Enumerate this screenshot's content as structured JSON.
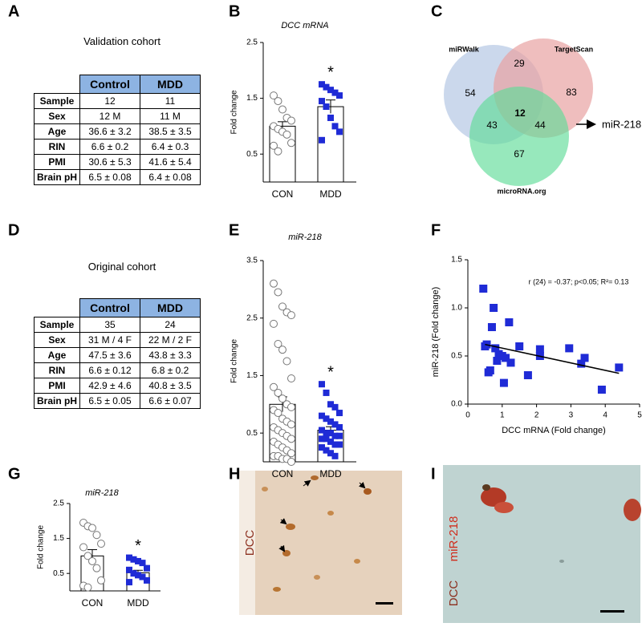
{
  "panel_letters": [
    "A",
    "B",
    "C",
    "D",
    "E",
    "F",
    "G",
    "H",
    "I"
  ],
  "tables": [
    {
      "title": "Validation cohort",
      "header": [
        "Control",
        "MDD"
      ],
      "rows": [
        [
          "Sample",
          "12",
          "11"
        ],
        [
          "Sex",
          "12 M",
          "11 M"
        ],
        [
          "Age",
          "36.6 ± 3.2",
          "38.5 ± 3.5"
        ],
        [
          "RIN",
          "6.6 ± 0.2",
          "6.4 ± 0.3"
        ],
        [
          "PMI",
          "30.6 ± 5.3",
          "41.6 ± 5.4"
        ],
        [
          "Brain pH",
          "6.5 ± 0.08",
          "6.4 ± 0.08"
        ]
      ]
    },
    {
      "title": "Original cohort",
      "header": [
        "Control",
        "MDD"
      ],
      "rows": [
        [
          "Sample",
          "35",
          "24"
        ],
        [
          "Sex",
          "31 M / 4 F",
          "22 M / 2 F"
        ],
        [
          "Age",
          "47.5 ± 3.6",
          "43.8 ± 3.3"
        ],
        [
          "RIN",
          "6.6 ± 0.12",
          "6.8 ± 0.2"
        ],
        [
          "PMI",
          "42.9 ± 4.6",
          "40.8 ± 3.5"
        ],
        [
          "Brain pH",
          "6.5 ± 0.05",
          "6.6 ± 0.07"
        ]
      ]
    }
  ],
  "chart_data": [
    {
      "type": "bar",
      "title": "DCC mRNA",
      "ylabel": "Fold change",
      "categories": [
        "CON",
        "MDD"
      ],
      "values": [
        1.0,
        1.35
      ],
      "errors": [
        0.08,
        0.12
      ],
      "points": [
        [
          1.55,
          1.45,
          1.3,
          1.15,
          1.1,
          1.0,
          0.95,
          0.9,
          0.85,
          0.7,
          0.65,
          0.55
        ],
        [
          1.75,
          1.7,
          1.65,
          1.6,
          1.55,
          1.45,
          1.35,
          1.15,
          1.0,
          0.9,
          0.75
        ]
      ],
      "colors": [
        "#ffffff",
        "#1f2bd6"
      ],
      "markers": [
        "circle",
        "square"
      ],
      "ylim": [
        0,
        2.5
      ],
      "yticks": [
        0.5,
        1.5,
        2.5
      ],
      "annotation": "*"
    },
    {
      "type": "bar",
      "title": "miR-218",
      "ylabel": "Fold change",
      "categories": [
        "CON",
        "MDD"
      ],
      "values": [
        1.0,
        0.55
      ],
      "errors": [
        0.13,
        0.06
      ],
      "points": [
        [
          3.1,
          2.95,
          2.7,
          2.6,
          2.55,
          2.4,
          2.05,
          1.95,
          1.75,
          1.45,
          1.3,
          1.2,
          1.1,
          1.0,
          0.95,
          0.9,
          0.85,
          0.75,
          0.7,
          0.65,
          0.6,
          0.55,
          0.5,
          0.45,
          0.4,
          0.35,
          0.3,
          0.25,
          0.2,
          0.15,
          0.1,
          0.1,
          0.05,
          0.05,
          0.0
        ],
        [
          1.35,
          1.2,
          1.0,
          0.95,
          0.85,
          0.8,
          0.75,
          0.7,
          0.65,
          0.6,
          0.55,
          0.5,
          0.5,
          0.45,
          0.45,
          0.4,
          0.4,
          0.35,
          0.3,
          0.3,
          0.25,
          0.2,
          0.15,
          0.1
        ]
      ],
      "colors": [
        "#ffffff",
        "#1f2bd6"
      ],
      "markers": [
        "circle",
        "square"
      ],
      "ylim": [
        0,
        3.5
      ],
      "yticks": [
        0.5,
        1.5,
        2.5,
        3.5
      ],
      "annotation": "*"
    },
    {
      "type": "scatter",
      "xlabel": "DCC mRNA (Fold change)",
      "ylabel": "miR-218 (Fold change)",
      "annotation": "r (24) = -0.37; p<0.05; R²= 0.13",
      "x": [
        0.45,
        0.5,
        0.55,
        0.6,
        0.65,
        0.7,
        0.75,
        0.8,
        0.85,
        0.9,
        1.0,
        1.05,
        1.1,
        1.2,
        1.25,
        1.5,
        1.75,
        2.1,
        2.1,
        2.95,
        3.3,
        3.4,
        3.9,
        4.4
      ],
      "y": [
        1.2,
        0.6,
        0.62,
        0.33,
        0.35,
        0.8,
        1.0,
        0.58,
        0.45,
        0.52,
        0.5,
        0.22,
        0.48,
        0.85,
        0.43,
        0.6,
        0.3,
        0.57,
        0.5,
        0.58,
        0.42,
        0.48,
        0.15,
        0.38
      ],
      "color": "#1f2bd6",
      "trendline": {
        "x": [
          0.5,
          4.4
        ],
        "y": [
          0.62,
          0.32
        ]
      },
      "xlim": [
        0,
        5
      ],
      "ylim": [
        0,
        1.5
      ],
      "xticks": [
        0,
        1,
        2,
        3,
        4,
        5
      ],
      "yticks": [
        {
          "value": 0,
          "label": "0.0"
        },
        0.5,
        {
          "value": 1,
          "label": "1.0"
        },
        1.5
      ]
    },
    {
      "type": "bar",
      "title": "miR-218",
      "ylabel": "Fold change",
      "categories": [
        "CON",
        "MDD"
      ],
      "values": [
        1.0,
        0.52
      ],
      "errors": [
        0.18,
        0.07
      ],
      "points": [
        [
          1.95,
          1.85,
          1.8,
          1.6,
          1.35,
          1.25,
          1.0,
          0.85,
          0.65,
          0.3,
          0.15,
          0.1
        ],
        [
          0.95,
          0.9,
          0.85,
          0.8,
          0.65,
          0.6,
          0.5,
          0.45,
          0.4,
          0.3,
          0.25
        ]
      ],
      "colors": [
        "#ffffff",
        "#1f2bd6"
      ],
      "markers": [
        "circle",
        "square"
      ],
      "ylim": [
        0,
        2.5
      ],
      "yticks": [
        0.5,
        1.5,
        2.5
      ],
      "annotation": "*"
    }
  ],
  "venn": {
    "sets": [
      "miRWalk",
      "TargetScan",
      "microRNA.org"
    ],
    "counts": [
      54,
      29,
      83,
      43,
      12,
      44,
      67
    ],
    "target": "miR-218"
  },
  "micrographs": [
    {
      "labels": [
        "DCC"
      ]
    },
    {
      "labels": [
        "DCC",
        "miR-218"
      ]
    }
  ]
}
